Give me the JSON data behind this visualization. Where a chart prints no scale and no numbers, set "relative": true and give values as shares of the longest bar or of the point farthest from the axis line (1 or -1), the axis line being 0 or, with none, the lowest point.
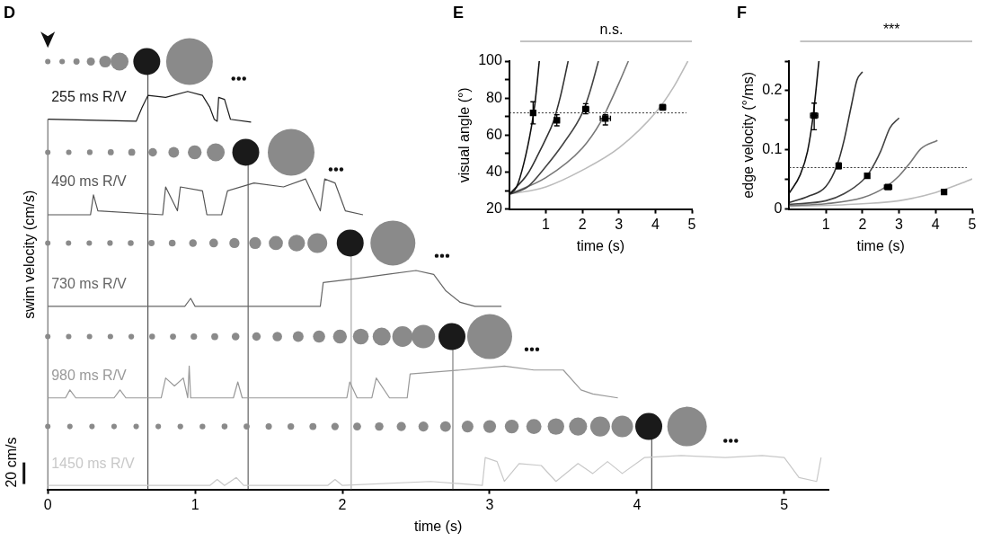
{
  "chart_data": [
    {
      "type": "line",
      "title": "D",
      "xlabel": "time (s)",
      "ylabel": "swim velocity (cm/s)",
      "relative": true,
      "xlim": [
        0,
        5.3
      ],
      "xticks": [
        0,
        1,
        2,
        3,
        4,
        5
      ],
      "annotations": [
        "20 cm/s"
      ],
      "ref_lines": [
        {
          "axis": "x",
          "value": 0,
          "color": "#555555"
        },
        {
          "axis": "x",
          "value": 0.68,
          "color": "#333333"
        },
        {
          "axis": "x",
          "value": 1.36,
          "color": "#444444"
        },
        {
          "axis": "x",
          "value": 2.06,
          "color": "#999999"
        },
        {
          "axis": "x",
          "value": 2.75,
          "color": "#666666"
        },
        {
          "axis": "x",
          "value": 4.1,
          "color": "#333333"
        }
      ],
      "series": [
        {
          "name": "255 ms R/V",
          "color": "#1a1a1a",
          "x": [
            0,
            0.6,
            0.64,
            0.68,
            0.8,
            0.95,
            1.05,
            1.1,
            1.13,
            1.15,
            1.16,
            1.2,
            1.24,
            1.38
          ],
          "values": [
            0.93,
            0.925,
            0.96,
            0.99,
            0.985,
            1.0,
            0.99,
            0.96,
            0.93,
            0.925,
            0.985,
            0.98,
            0.93,
            0.923
          ]
        },
        {
          "name": "490 ms R/V",
          "color": "#555555",
          "x": [
            0,
            0.29,
            0.31,
            0.34,
            0.78,
            0.8,
            0.88,
            0.9,
            1.05,
            1.08,
            1.18,
            1.22,
            1.4,
            1.6,
            1.75,
            1.85,
            1.88,
            1.95,
            2.02,
            2.14
          ],
          "values": [
            0.69,
            0.69,
            0.74,
            0.7,
            0.69,
            0.76,
            0.7,
            0.76,
            0.75,
            0.69,
            0.69,
            0.75,
            0.77,
            0.76,
            0.78,
            0.7,
            0.78,
            0.77,
            0.7,
            0.69
          ]
        },
        {
          "name": "730 ms R/V",
          "color": "#666666",
          "x": [
            0,
            0.93,
            0.97,
            1.0,
            1.85,
            1.87,
            2.1,
            2.3,
            2.5,
            2.62,
            2.7,
            2.8,
            2.9,
            3.08
          ],
          "values": [
            0.46,
            0.46,
            0.48,
            0.46,
            0.46,
            0.52,
            0.53,
            0.54,
            0.55,
            0.54,
            0.5,
            0.47,
            0.46,
            0.46
          ]
        },
        {
          "name": "980 ms R/V",
          "color": "#999999",
          "x": [
            0,
            0.12,
            0.15,
            0.19,
            0.45,
            0.49,
            0.53,
            0.77,
            0.8,
            0.86,
            0.92,
            0.95,
            0.96,
            0.97,
            1.26,
            1.29,
            1.32,
            2.03,
            2.05,
            2.1,
            2.2,
            2.23,
            2.32,
            2.44,
            2.46,
            2.8,
            3.1,
            3.3,
            3.5,
            3.62,
            3.7,
            3.87
          ],
          "values": [
            0.23,
            0.23,
            0.25,
            0.23,
            0.23,
            0.25,
            0.23,
            0.23,
            0.28,
            0.26,
            0.28,
            0.23,
            0.31,
            0.23,
            0.23,
            0.27,
            0.23,
            0.23,
            0.27,
            0.23,
            0.23,
            0.28,
            0.23,
            0.23,
            0.29,
            0.3,
            0.31,
            0.3,
            0.3,
            0.25,
            0.24,
            0.23
          ]
        },
        {
          "name": "1450 ms R/V",
          "color": "#c8c8c8",
          "x": [
            0,
            1.1,
            1.15,
            1.2,
            1.28,
            1.33,
            1.9,
            1.95,
            2.0,
            2.6,
            2.95,
            2.97,
            3.05,
            3.1,
            3.2,
            3.35,
            3.45,
            3.6,
            3.7,
            3.8,
            3.9,
            4.05,
            4.3,
            4.6,
            4.85,
            5.0,
            5.1,
            5.22,
            5.25
          ],
          "values": [
            0.01,
            0.01,
            0.025,
            0.01,
            0.03,
            0.01,
            0.01,
            0.025,
            0.01,
            0.02,
            0.01,
            0.08,
            0.07,
            0.02,
            0.065,
            0.06,
            0.02,
            0.065,
            0.04,
            0.07,
            0.04,
            0.08,
            0.085,
            0.08,
            0.085,
            0.08,
            0.03,
            0.02,
            0.08
          ]
        }
      ]
    },
    {
      "type": "line",
      "title": "E",
      "xlabel": "time (s)",
      "ylabel": "visual angle (°)",
      "xlim": [
        0,
        5
      ],
      "xticks": [
        1,
        2,
        3,
        4,
        5
      ],
      "ylim": [
        20,
        100
      ],
      "yticks": [
        20,
        {
          "value": 30,
          "label": null
        },
        40,
        {
          "value": 50,
          "label": null
        },
        60,
        {
          "value": 70,
          "label": null
        },
        80,
        {
          "value": 90,
          "label": null
        },
        100
      ],
      "annotations": [
        "n.s."
      ],
      "ref_lines": [
        {
          "axis": "y",
          "value": 72,
          "line_style": "dotted",
          "color": "#333333"
        }
      ],
      "series": [
        {
          "color": "#111111",
          "x": [
            0,
            0.2,
            0.4,
            0.6,
            0.7,
            0.82
          ],
          "values": [
            28,
            32,
            45,
            64,
            77,
            100
          ]
        },
        {
          "color": "#333333",
          "x": [
            0,
            0.5,
            0.8,
            1.0,
            1.2,
            1.4,
            1.61
          ],
          "values": [
            28,
            39,
            50,
            58,
            67,
            81,
            100
          ]
        },
        {
          "color": "#444444",
          "x": [
            0,
            0.5,
            1.0,
            1.5,
            2.0,
            2.2,
            2.44
          ],
          "values": [
            28,
            32,
            43,
            56,
            72,
            83,
            100
          ]
        },
        {
          "color": "#777777",
          "x": [
            0,
            1,
            2,
            2.5,
            2.7,
            3,
            3.26
          ],
          "values": [
            28,
            37,
            53,
            67,
            75,
            88,
            100
          ]
        },
        {
          "color": "#bbbbbb",
          "x": [
            0,
            1,
            2,
            3,
            4,
            4.5,
            4.89
          ],
          "values": [
            28,
            32,
            41,
            53,
            72,
            86,
            100
          ]
        },
        {
          "type": "scatter",
          "marker": "square",
          "color": "#000000",
          "x": [
            0.65,
            1.3,
            2.09,
            2.63,
            4.2
          ],
          "values": [
            72,
            68,
            74,
            69,
            75
          ],
          "errors": [
            [
              66,
              78
            ],
            [
              65,
              71
            ],
            [
              71.5,
              77
            ],
            [
              65.5,
              71
            ],
            [
              73.5,
              76.5
            ]
          ],
          "xerrors": [
            null,
            0.07,
            0.08,
            0.14,
            0.08
          ]
        }
      ]
    },
    {
      "type": "line",
      "title": "F",
      "xlabel": "time (s)",
      "ylabel": "edge velocity (°/ms)",
      "xlim": [
        0,
        5
      ],
      "xticks": [
        1,
        2,
        3,
        4,
        5
      ],
      "ylim": [
        0,
        0.25
      ],
      "yticks": [
        0,
        {
          "value": 0.05,
          "label": null
        },
        0.1,
        {
          "value": 0.15,
          "label": null
        },
        0.2,
        {
          "value": 0.25,
          "label": null
        }
      ],
      "annotations": [
        "***"
      ],
      "ref_lines": [
        {
          "axis": "y",
          "value": 0.07,
          "line_style": "dotted",
          "color": "#333333"
        }
      ],
      "series": [
        {
          "color": "#111111",
          "x": [
            0,
            0.3,
            0.5,
            0.65,
            0.81
          ],
          "values": [
            0.027,
            0.058,
            0.098,
            0.157,
            0.25
          ]
        },
        {
          "color": "#333333",
          "x": [
            0,
            0.5,
            1,
            1.3,
            1.5,
            1.7,
            1.85,
            2.0
          ],
          "values": [
            0.011,
            0.021,
            0.038,
            0.073,
            0.117,
            0.176,
            0.218,
            0.232
          ]
        },
        {
          "color": "#444444",
          "x": [
            0,
            1,
            1.5,
            2,
            2.2,
            2.5,
            2.75,
            3.0
          ],
          "values": [
            0.008,
            0.014,
            0.026,
            0.048,
            0.063,
            0.098,
            0.137,
            0.154
          ]
        },
        {
          "color": "#777777",
          "x": [
            0,
            1,
            2,
            2.65,
            3,
            3.3,
            3.6,
            4.05
          ],
          "values": [
            0.006,
            0.009,
            0.019,
            0.038,
            0.056,
            0.078,
            0.102,
            0.116
          ]
        },
        {
          "color": "#bbbbbb",
          "x": [
            0,
            2,
            3,
            4,
            4.6,
            5
          ],
          "values": [
            0.004,
            0.009,
            0.014,
            0.028,
            0.041,
            0.051
          ]
        },
        {
          "type": "scatter",
          "marker": "square",
          "color": "#000000",
          "x": [
            0.68,
            1.35,
            2.13,
            2.7,
            4.23
          ],
          "values": [
            0.158,
            0.073,
            0.056,
            0.037,
            0.029
          ],
          "errors": [
            [
              0.134,
              0.179
            ],
            0.005,
            null,
            null,
            null
          ],
          "xerrors": [
            0.1,
            null,
            null,
            0.1,
            null
          ]
        }
      ]
    }
  ]
}
